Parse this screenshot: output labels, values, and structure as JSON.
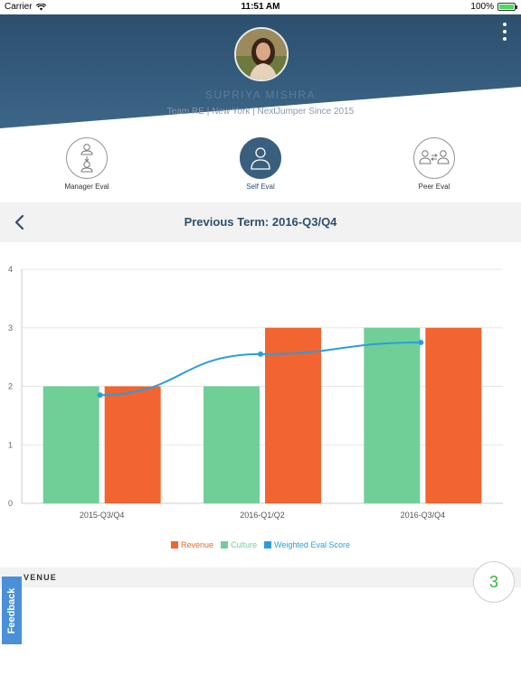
{
  "status_bar": {
    "carrier": "Carrier",
    "time": "11:51 AM",
    "battery": "100%"
  },
  "profile": {
    "name": "SUPRIYA MISHRA",
    "subline": "Team RE | New York | NextJumper Since 2015"
  },
  "eval_tabs": [
    {
      "label": "Manager Eval",
      "icon": "manager-eval-icon",
      "active": false
    },
    {
      "label": "Self Eval",
      "icon": "person-icon",
      "active": true
    },
    {
      "label": "Peer Eval",
      "icon": "peer-eval-icon",
      "active": false
    }
  ],
  "term": {
    "title": "Previous Term: 2016-Q3/Q4"
  },
  "colors": {
    "header": "#2c4f6e",
    "revenue": "#f26430",
    "culture": "#6fcf97",
    "weighted": "#2d9cdb",
    "score_green": "#3bb33b",
    "feedback": "#4a90d9"
  },
  "chart_data": {
    "type": "bar",
    "categories": [
      "2015-Q3/Q4",
      "2016-Q1/Q2",
      "2016-Q3/Q4"
    ],
    "series": [
      {
        "name": "Culture",
        "type": "bar",
        "values": [
          2,
          2,
          3
        ]
      },
      {
        "name": "Revenue",
        "type": "bar",
        "values": [
          2,
          3,
          3
        ]
      },
      {
        "name": "Weighted Eval Score",
        "type": "line",
        "values": [
          1.85,
          2.55,
          2.75
        ]
      }
    ],
    "yticks": [
      "0",
      "1",
      "2",
      "3",
      "4"
    ],
    "ylim": [
      0,
      4
    ],
    "grid": true,
    "legend_position": "bottom-center",
    "legend": [
      "Revenue",
      "Culture",
      "Weighted Eval Score"
    ]
  },
  "section": {
    "label": "VENUE",
    "score": "3"
  },
  "feedback_label": "Feedback"
}
